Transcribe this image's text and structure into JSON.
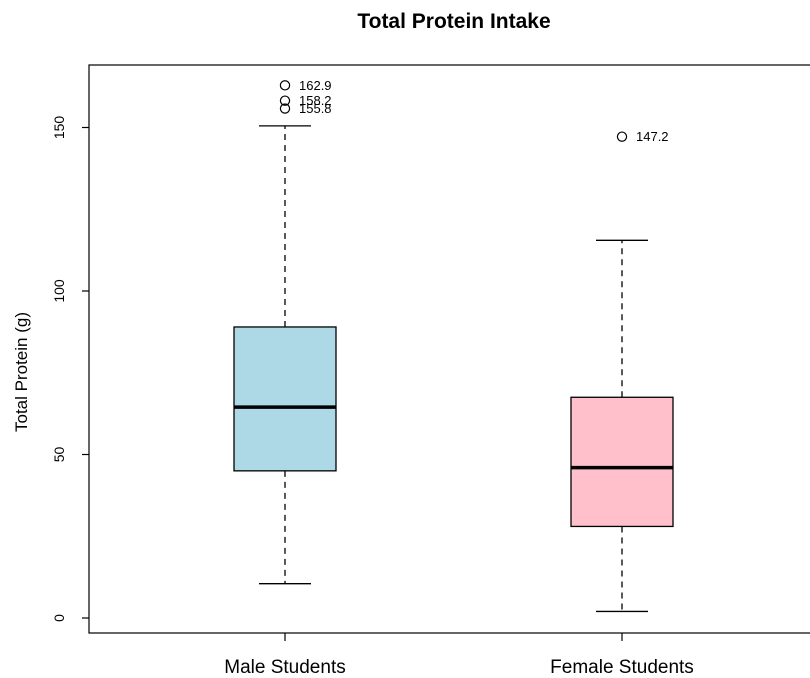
{
  "chart_data": {
    "type": "box",
    "title": "Total Protein Intake",
    "xlabel": "",
    "ylabel": "Total Protein (g)",
    "ylim": [
      -5,
      170
    ],
    "yticks": [
      0,
      50,
      100,
      150
    ],
    "grid": false,
    "categories": [
      "Male Students",
      "Female Students"
    ],
    "boxes": [
      {
        "category": "Male Students",
        "whisker_low": 10.5,
        "q1": 45,
        "median": 64.5,
        "q3": 89,
        "whisker_high": 150.5,
        "outliers": [
          155.8,
          158.2,
          162.9
        ],
        "outlier_labels": [
          "155.8",
          "158.2",
          "162.9"
        ],
        "fill": "#add8e6"
      },
      {
        "category": "Female Students",
        "whisker_low": 2,
        "q1": 28,
        "median": 46,
        "q3": 67.5,
        "whisker_high": 115.5,
        "outliers": [
          147.2
        ],
        "outlier_labels": [
          "147.2"
        ],
        "fill": "#ffc0cb"
      }
    ]
  }
}
